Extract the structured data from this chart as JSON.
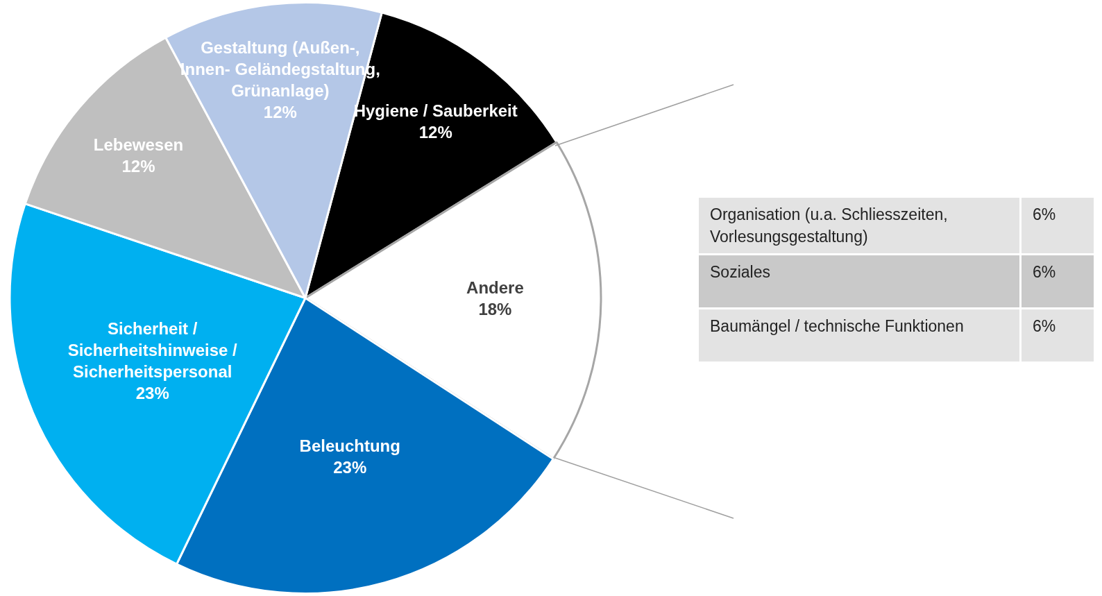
{
  "chart_data": [
    {
      "type": "pie",
      "categories": [
        "Hygiene / Sauberkeit",
        "Andere",
        "Beleuchtung",
        "Sicherheit /\nSicherheitshinweise /\nSicherheitspersonal",
        "Lebewesen",
        "Gestaltung (Außen-,\nInnen- Geländegstaltung,\nGrünanlage)"
      ],
      "values": [
        12,
        18,
        23,
        23,
        12,
        12
      ],
      "value_labels": [
        "12%",
        "18%",
        "23%",
        "23%",
        "12%",
        "12%"
      ],
      "colors": [
        "#000000",
        "#ffffff",
        "#0070c0",
        "#00b0f0",
        "#bfbfbf",
        "#b4c7e7"
      ],
      "legend": false
    },
    {
      "type": "other",
      "categories": [
        "Organisation (u.a. Schliesszeiten,\nVorlesungsgestaltung)",
        "Soziales",
        "Baumängel / technische Funktionen"
      ],
      "value_labels": [
        "6%",
        "6%",
        "6%"
      ],
      "colors": [
        "#e3e3e3",
        "#c9c9c9",
        "#e3e3e3"
      ]
    }
  ]
}
